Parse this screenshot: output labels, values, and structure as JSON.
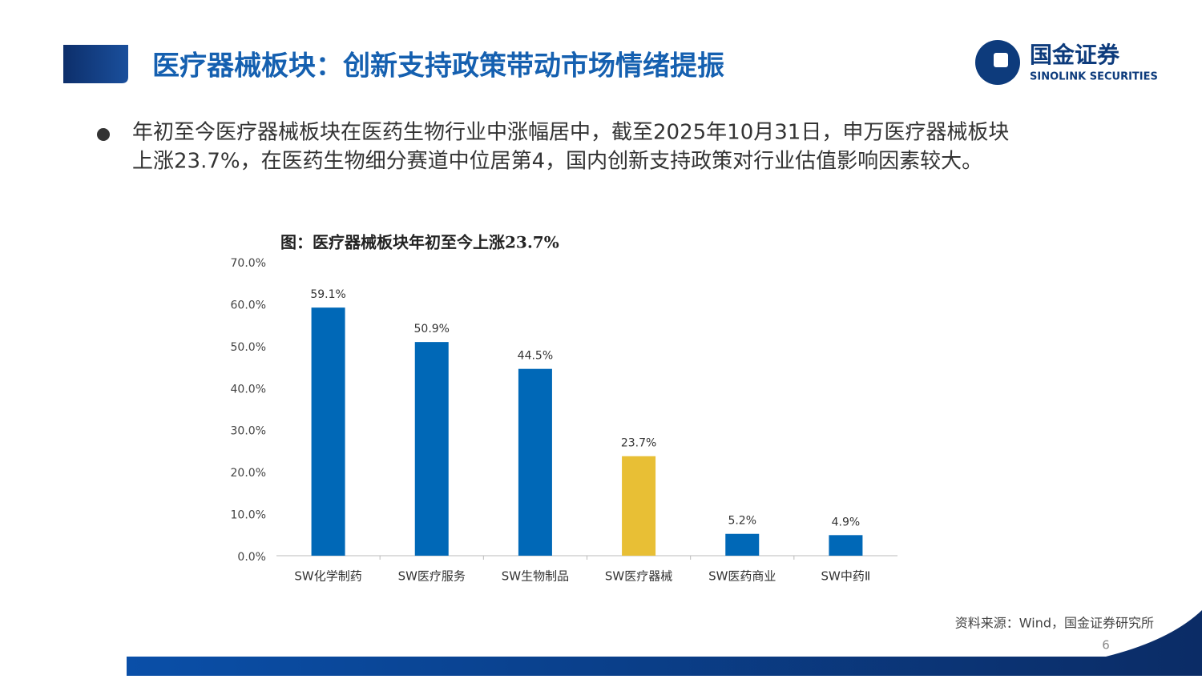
{
  "header": {
    "title": "医疗器械板块：创新支持政策带动市场情绪提振",
    "logo_cn": "国金证券",
    "logo_en": "SINOLINK SECURITIES"
  },
  "bullet": {
    "lines": [
      "年初至今医疗器械板块在医药生物行业中涨幅居中，截至2025年10月31日，申万医疗器械板块",
      "上涨23.7%，在医药生物细分赛道中位居第4，国内创新支持政策对行业估值影响因素较大。"
    ]
  },
  "chart_data": {
    "type": "bar",
    "title": "图：医疗器械板块年初至今上涨23.7%",
    "categories": [
      "SW化学制药",
      "SW医疗服务",
      "SW生物制品",
      "SW医疗器械",
      "SW医药商业",
      "SW中药Ⅱ"
    ],
    "values": [
      59.1,
      50.9,
      44.5,
      23.7,
      5.2,
      4.9
    ],
    "value_labels": [
      "59.1%",
      "50.9%",
      "44.5%",
      "23.7%",
      "5.2%",
      "4.9%"
    ],
    "colors": [
      "#0068b7",
      "#0068b7",
      "#0068b7",
      "#e8bf35",
      "#0068b7",
      "#0068b7"
    ],
    "ylim": [
      0,
      70
    ],
    "yticks": [
      {
        "value": 0,
        "label": "0.0%"
      },
      {
        "value": 10,
        "label": "10.0%"
      },
      {
        "value": 20,
        "label": "20.0%"
      },
      {
        "value": 30,
        "label": "30.0%"
      },
      {
        "value": 40,
        "label": "40.0%"
      },
      {
        "value": 50,
        "label": "50.0%"
      },
      {
        "value": 60,
        "label": "60.0%"
      },
      {
        "value": 70,
        "label": "70.0%"
      }
    ],
    "grid": false
  },
  "source": "资料来源：Wind，国金证券研究所",
  "page_number": "6"
}
